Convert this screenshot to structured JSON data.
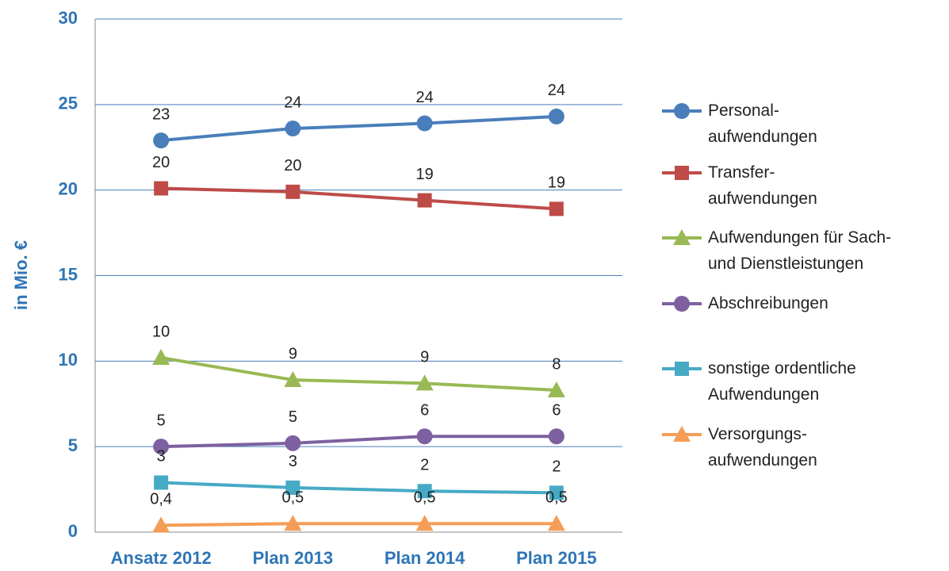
{
  "chart_data": {
    "type": "line",
    "y_label": "in Mio. €",
    "categories": [
      "Ansatz 2012",
      "Plan 2013",
      "Plan 2014",
      "Plan 2015"
    ],
    "ylim": [
      0,
      30
    ],
    "yticks": [
      0,
      5,
      10,
      15,
      20,
      25,
      30
    ],
    "grid": true,
    "legend": "right",
    "series": [
      {
        "name": "Personal-\naufwendungen",
        "color": "#4a7ebb",
        "marker": "circle",
        "values": [
          22.9,
          23.6,
          23.9,
          24.3
        ],
        "value_labels": [
          "23",
          "24",
          "24",
          "24"
        ]
      },
      {
        "name": "Transfer-\naufwendungen",
        "color": "#be4b48",
        "marker": "square",
        "values": [
          20.1,
          19.9,
          19.4,
          18.9
        ],
        "value_labels": [
          "20",
          "20",
          "19",
          "19"
        ]
      },
      {
        "name": "Aufwendungen für Sach-\nund Dienstleistungen",
        "color": "#98b954",
        "marker": "triangle",
        "values": [
          10.2,
          8.9,
          8.7,
          8.3
        ],
        "value_labels": [
          "10",
          "9",
          "9",
          "8"
        ]
      },
      {
        "name": "Abschreibungen",
        "color": "#7d60a0",
        "marker": "circle",
        "values": [
          5.0,
          5.2,
          5.6,
          5.6
        ],
        "value_labels": [
          "5",
          "5",
          "6",
          "6"
        ]
      },
      {
        "name": "sonstige ordentliche\nAufwendungen",
        "color": "#46aac5",
        "marker": "square",
        "values": [
          2.9,
          2.6,
          2.4,
          2.3
        ],
        "value_labels": [
          "3",
          "3",
          "2",
          "2"
        ]
      },
      {
        "name": "Versorgungs-\naufwendungen",
        "color": "#f59d56",
        "marker": "triangle",
        "values": [
          0.4,
          0.5,
          0.5,
          0.5
        ],
        "value_labels": [
          "0,4",
          "0,5",
          "0,5",
          "0,5"
        ]
      }
    ]
  }
}
